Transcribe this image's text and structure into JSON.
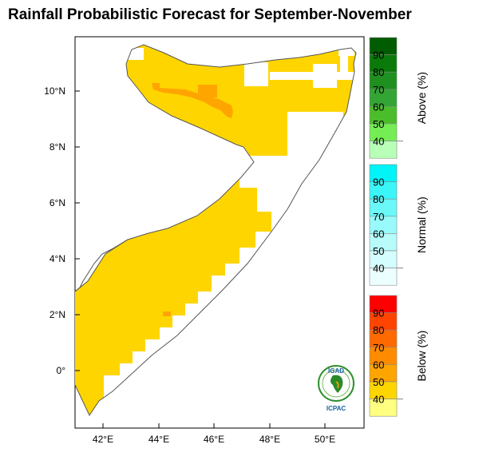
{
  "title": "Rainfall Probabilistic Forecast for September-November",
  "map": {
    "x_ticks": [
      "42°E",
      "44°E",
      "46°E",
      "48°E",
      "50°E"
    ],
    "y_ticks": [
      "10°N",
      "8°N",
      "6°N",
      "4°N",
      "2°N",
      "0°"
    ],
    "forecast_categories": [
      "Below 40-50% (yellow)",
      "Below 50-60% (orange)"
    ]
  },
  "colorbars": [
    {
      "title": "Above (%)",
      "labels": [
        "90",
        "80",
        "70",
        "60",
        "50",
        "40"
      ],
      "colors": [
        "#005c00",
        "#0a7a0a",
        "#1f8f1f",
        "#34a534",
        "#4cbd2a",
        "#74ee54",
        "#b8ffb8"
      ]
    },
    {
      "title": "Normal (%)",
      "labels": [
        "90",
        "80",
        "70",
        "60",
        "50",
        "40"
      ],
      "colors": [
        "#00f4f8",
        "#3af6f8",
        "#6af8f8",
        "#98fafa",
        "#b8fbfb",
        "#d4fdfd",
        "#ecffff"
      ]
    },
    {
      "title": "Below (%)",
      "labels": [
        "90",
        "80",
        "70",
        "60",
        "50",
        "40"
      ],
      "colors": [
        "#ff0000",
        "#ff4400",
        "#ff6a00",
        "#ff8c00",
        "#ffa500",
        "#ffd500",
        "#ffff80"
      ]
    }
  ],
  "colors": {
    "below_40": "#ffd500",
    "below_50": "#ffa500",
    "land_outline": "#555555"
  },
  "logo": {
    "top_text": "IGAD",
    "bottom_text": "ICPAC"
  }
}
